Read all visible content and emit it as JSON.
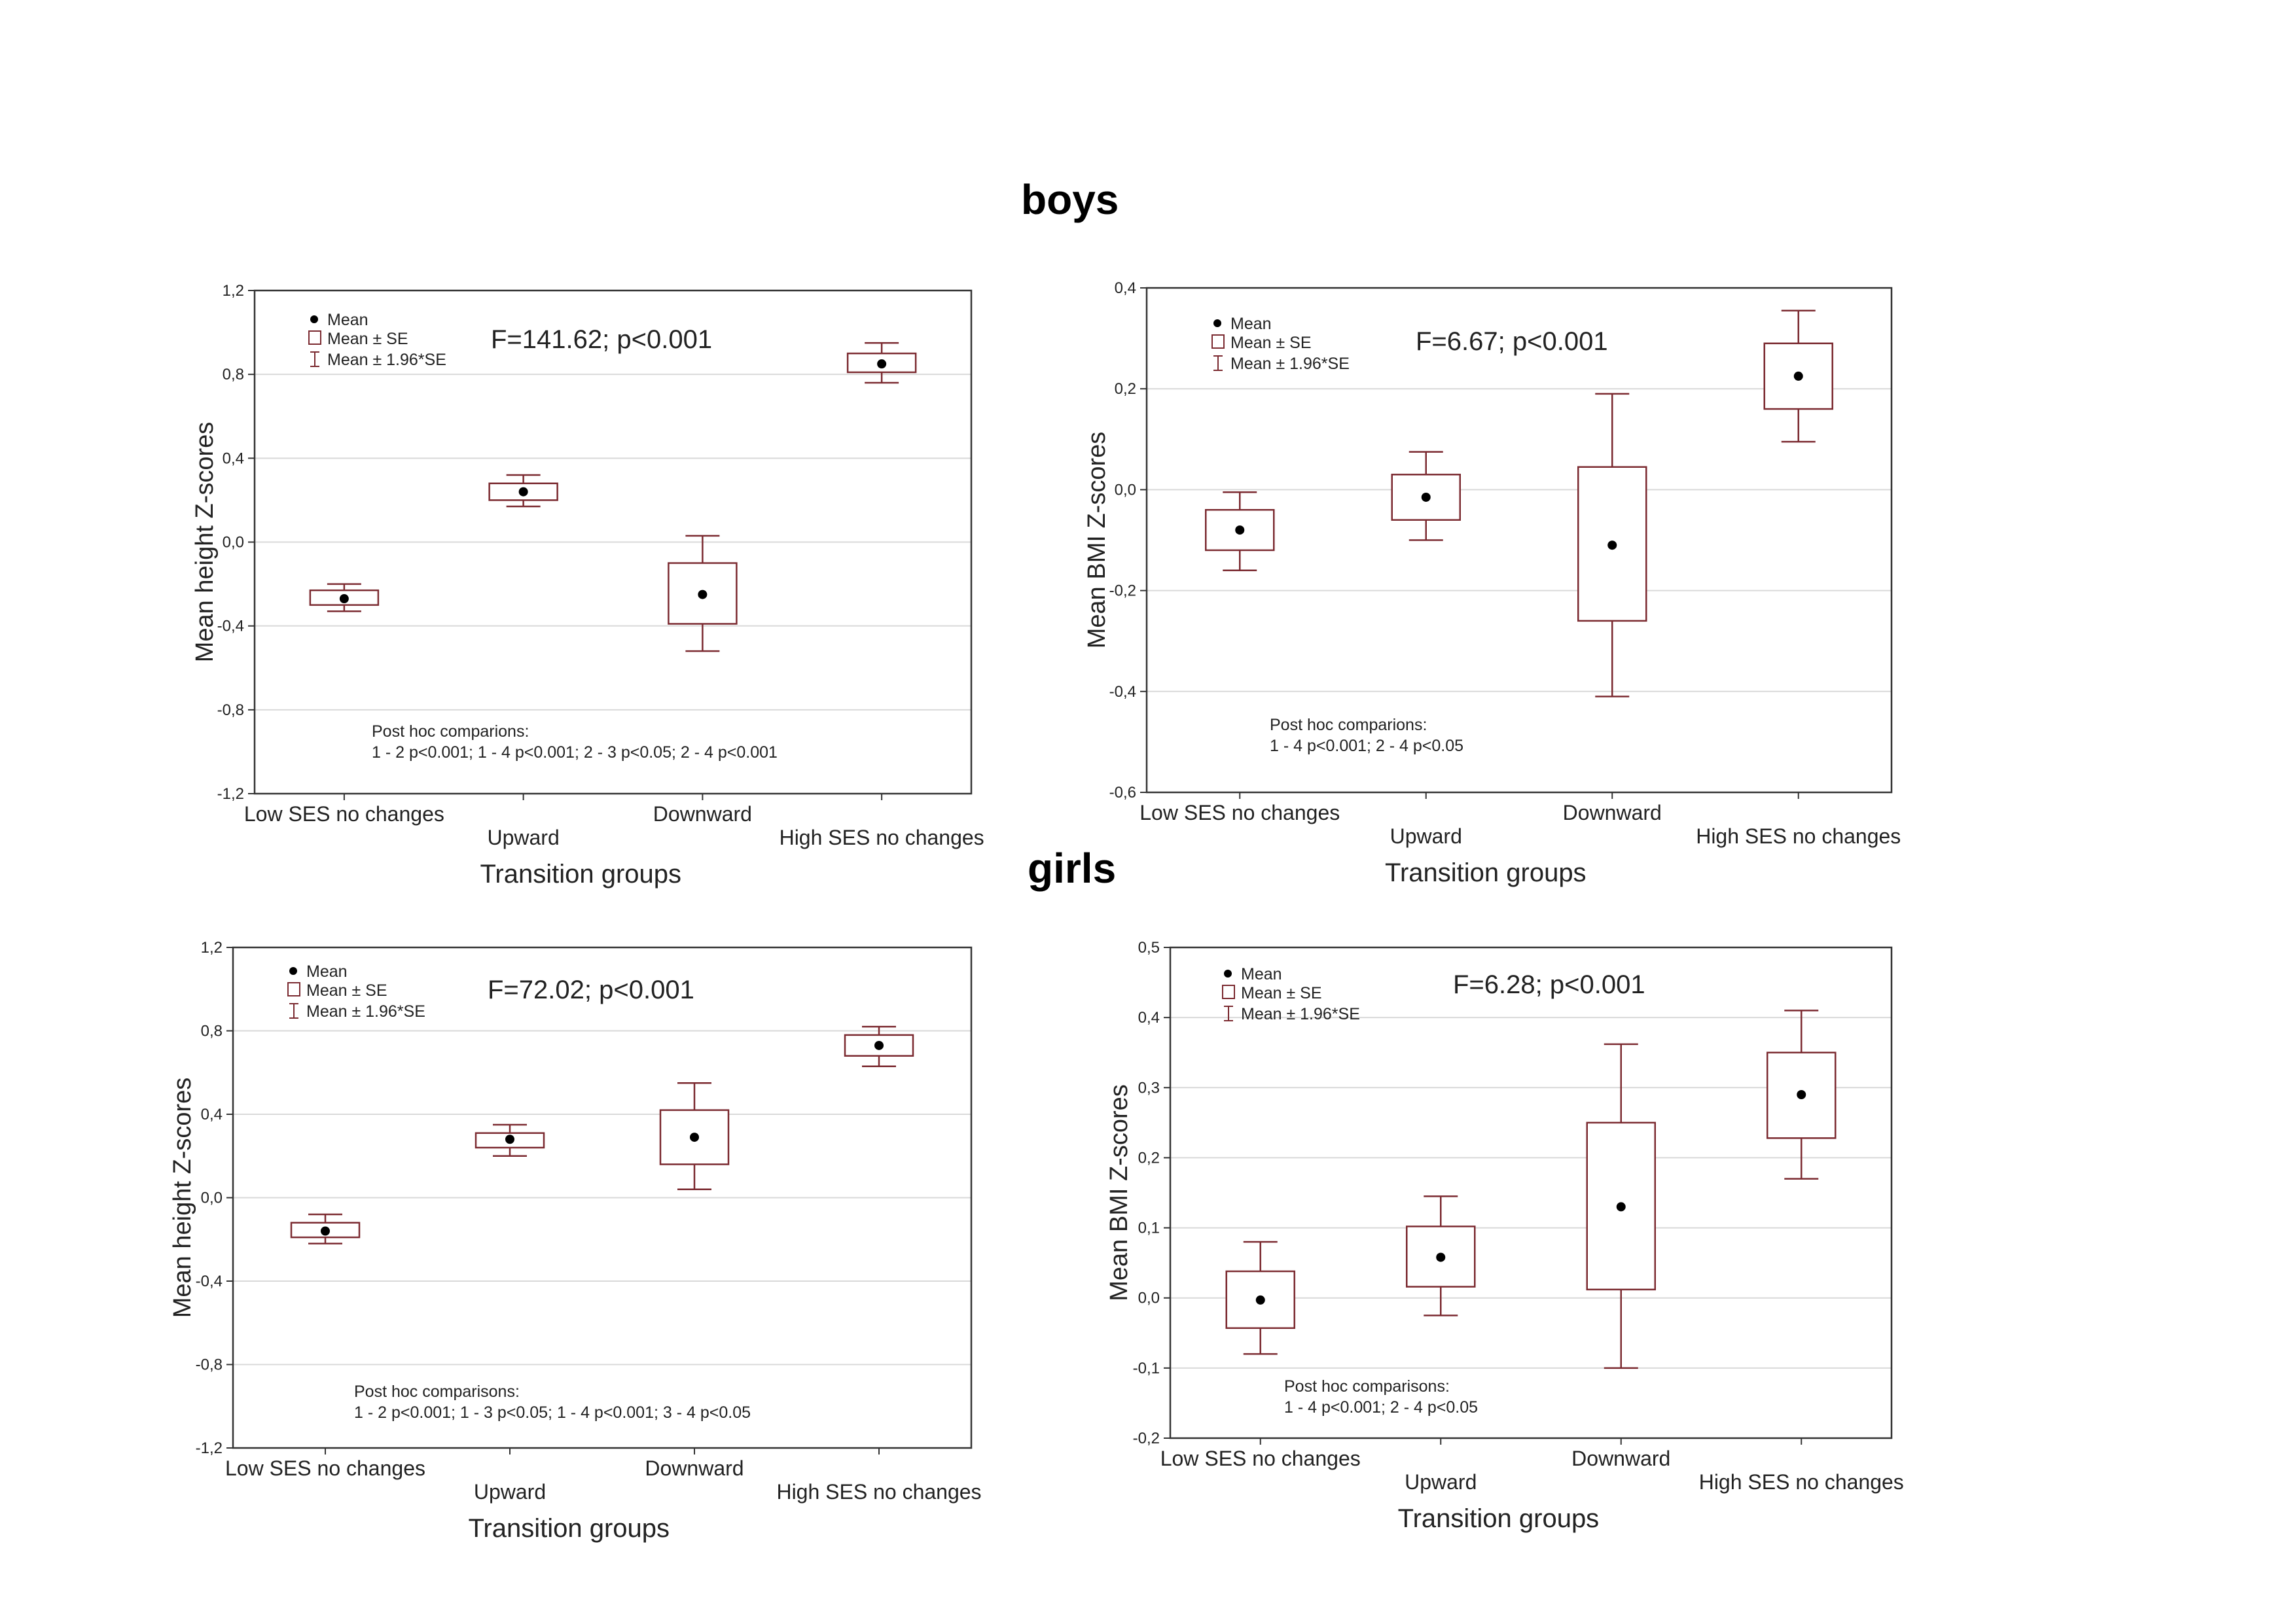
{
  "headings": {
    "boys": "boys",
    "girls": "girls"
  },
  "legend": {
    "mean": "Mean",
    "se": "Mean ± SE",
    "ci": "Mean ± 1.96*SE"
  },
  "colors": {
    "box": "#7b2a30",
    "whisker": "#7b2a30",
    "frame": "#333333",
    "grid": "#d9d9d9",
    "mean": "#000000"
  },
  "chart_data": [
    {
      "type": "box",
      "panel": "boys-height",
      "stat": "F=141.62; p<0.001",
      "xlabel": "Transition groups",
      "ylabel": "Mean height Z-scores",
      "categories": [
        "Low SES no changes",
        "Upward",
        "Downward",
        "High SES no changes"
      ],
      "yticks": [
        "1,2",
        "0,8",
        "0,4",
        "0,0",
        "-0,4",
        "-0,8",
        "-1,2"
      ],
      "ylim": [
        -1.2,
        1.2
      ],
      "mean": [
        -0.27,
        0.24,
        -0.25,
        0.85
      ],
      "se_low": [
        -0.3,
        0.2,
        -0.39,
        0.81
      ],
      "se_high": [
        -0.23,
        0.28,
        -0.1,
        0.9
      ],
      "ci_low": [
        -0.33,
        0.17,
        -0.52,
        0.76
      ],
      "ci_high": [
        -0.2,
        0.32,
        0.03,
        0.95
      ],
      "posthoc_title": "Post hoc comparions:",
      "posthoc_text": "1 - 2 p<0.001; 1 - 4 p<0.001; 2 - 3 p<0.05; 2 - 4 p<0.001"
    },
    {
      "type": "box",
      "panel": "boys-bmi",
      "stat": "F=6.67; p<0.001",
      "xlabel": "Transition groups",
      "ylabel": "Mean BMI Z-scores",
      "categories": [
        "Low SES no changes",
        "Upward",
        "Downward",
        "High SES no changes"
      ],
      "yticks": [
        "0,4",
        "0,2",
        "0,0",
        "-0,2",
        "-0,4",
        "-0,6"
      ],
      "ylim": [
        -0.6,
        0.4
      ],
      "mean": [
        -0.08,
        -0.015,
        -0.11,
        0.225
      ],
      "se_low": [
        -0.12,
        -0.06,
        -0.26,
        0.16
      ],
      "se_high": [
        -0.04,
        0.03,
        0.045,
        0.29
      ],
      "ci_low": [
        -0.16,
        -0.1,
        -0.41,
        0.095
      ],
      "ci_high": [
        -0.005,
        0.075,
        0.19,
        0.355
      ],
      "posthoc_title": "Post hoc comparions:",
      "posthoc_text": "1 - 4 p<0.001; 2 - 4 p<0.05"
    },
    {
      "type": "box",
      "panel": "girls-height",
      "stat": "F=72.02; p<0.001",
      "xlabel": "Transition groups",
      "ylabel": "Mean height Z-scores",
      "categories": [
        "Low SES no changes",
        "Upward",
        "Downward",
        "High SES no changes"
      ],
      "yticks": [
        "1,2",
        "0,8",
        "0,4",
        "0,0",
        "-0,4",
        "-0,8",
        "-1,2"
      ],
      "ylim": [
        -1.2,
        1.2
      ],
      "mean": [
        -0.16,
        0.28,
        0.29,
        0.73
      ],
      "se_low": [
        -0.19,
        0.24,
        0.16,
        0.68
      ],
      "se_high": [
        -0.12,
        0.31,
        0.42,
        0.78
      ],
      "ci_low": [
        -0.22,
        0.2,
        0.04,
        0.63
      ],
      "ci_high": [
        -0.08,
        0.35,
        0.55,
        0.82
      ],
      "posthoc_title": "Post hoc comparisons:",
      "posthoc_text": "1 - 2 p<0.001; 1 - 3 p<0.05; 1 - 4 p<0.001; 3 - 4 p<0.05"
    },
    {
      "type": "box",
      "panel": "girls-bmi",
      "stat": "F=6.28; p<0.001",
      "xlabel": "Transition groups",
      "ylabel": "Mean BMI Z-scores",
      "categories": [
        "Low SES no changes",
        "Upward",
        "Downward",
        "High SES no changes"
      ],
      "yticks": [
        "0,5",
        "0,4",
        "0,3",
        "0,2",
        "0,1",
        "0,0",
        "-0,1",
        "-0,2"
      ],
      "ylim": [
        -0.2,
        0.5
      ],
      "mean": [
        -0.003,
        0.058,
        0.13,
        0.29
      ],
      "se_low": [
        -0.043,
        0.016,
        0.012,
        0.228
      ],
      "se_high": [
        0.038,
        0.102,
        0.25,
        0.35
      ],
      "ci_low": [
        -0.08,
        -0.025,
        -0.1,
        0.17
      ],
      "ci_high": [
        0.08,
        0.145,
        0.362,
        0.41
      ],
      "posthoc_title": "Post hoc comparisons:",
      "posthoc_text": "1 - 4 p<0.001; 2 - 4 p<0.05"
    }
  ]
}
